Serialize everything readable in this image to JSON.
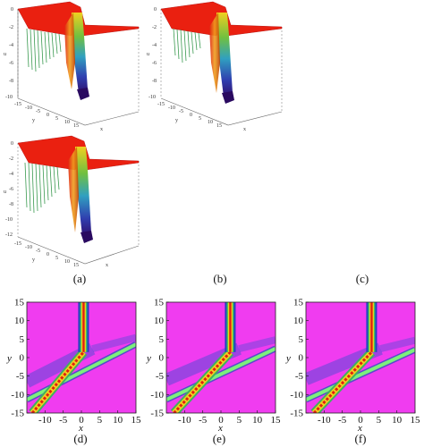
{
  "figure": {
    "captions": [
      "(a)",
      "(b)",
      "(c)",
      "(d)",
      "(e)",
      "(f)"
    ],
    "surface_plots": [
      {
        "id": "a",
        "zlabel": "u",
        "zticks": [
          "0",
          "-2",
          "-4",
          "-6",
          "-8",
          "-10"
        ],
        "yticks": [
          "-15",
          "-10",
          "-5",
          "0",
          "5",
          "10",
          "15"
        ],
        "ylabel": "y",
        "xlabel": "x"
      },
      {
        "id": "b",
        "zlabel": "u",
        "zticks": [
          "0",
          "-2",
          "-4",
          "-6",
          "-8",
          "-10"
        ],
        "yticks": [
          "-15",
          "-10",
          "-5",
          "0",
          "5",
          "10",
          "15"
        ],
        "ylabel": "y",
        "xlabel": "x"
      },
      {
        "id": "c",
        "zlabel": "u",
        "zticks": [
          "0",
          "-2",
          "-4",
          "-6",
          "-8",
          "-10",
          "-12"
        ],
        "yticks": [
          "-15",
          "-10",
          "-5",
          "0",
          "5",
          "10",
          "15"
        ],
        "ylabel": "y",
        "xlabel": "x"
      }
    ],
    "density_plots": [
      {
        "id": "d",
        "xlabel": "x",
        "ylabel": "y",
        "xticks": [
          "-10",
          "-5",
          "0",
          "5",
          "10",
          "15"
        ],
        "yticks": [
          "15",
          "10",
          "5",
          "0",
          "-5",
          "-10",
          "-15"
        ]
      },
      {
        "id": "e",
        "xlabel": "x",
        "ylabel": "y",
        "xticks": [
          "-10",
          "-5",
          "0",
          "5",
          "10",
          "15"
        ],
        "yticks": [
          "15",
          "10",
          "5",
          "0",
          "-5",
          "-10",
          "-15"
        ]
      },
      {
        "id": "f",
        "xlabel": "x",
        "ylabel": "y",
        "xticks": [
          "-10",
          "-5",
          "0",
          "5",
          "10",
          "15"
        ],
        "yticks": [
          "15",
          "10",
          "5",
          "0",
          "-5",
          "-10",
          "-15"
        ]
      }
    ],
    "colors": {
      "surface_top": "#ee2010",
      "background_magenta": "#f03cf0",
      "stripe_green": "#7cf07c",
      "stripe_blue": "#5a4ad8",
      "core_red": "#e02010"
    }
  }
}
